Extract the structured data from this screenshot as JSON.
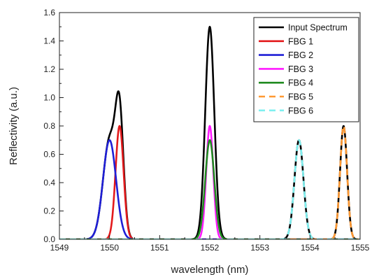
{
  "chart_data": {
    "type": "line",
    "xlabel": "wavelength (nm)",
    "ylabel": "Reflectivity (a.u.)",
    "xlim": [
      1549,
      1555
    ],
    "ylim": [
      0.0,
      1.6
    ],
    "x_ticks": [
      1549,
      1550,
      1551,
      1552,
      1553,
      1554,
      1555
    ],
    "y_ticks": [
      "0.0",
      "0.2",
      "0.4",
      "0.6",
      "0.8",
      "1.0",
      "1.2",
      "1.4",
      "1.6"
    ],
    "grid": false,
    "legend_position": "top-right",
    "series": [
      {
        "name": "Input Spectrum",
        "color": "#000000",
        "style": "solid",
        "peaks": [
          {
            "center": 1550.0,
            "height": 0.7,
            "width": 0.13
          },
          {
            "center": 1550.2,
            "height": 0.8,
            "width": 0.08
          },
          {
            "center": 1552.0,
            "height": 1.5,
            "width": 0.09
          },
          {
            "center": 1553.78,
            "height": 0.7,
            "width": 0.09
          },
          {
            "center": 1554.67,
            "height": 0.8,
            "width": 0.07
          }
        ]
      },
      {
        "name": "FBG 1",
        "color": "#e31a1c",
        "style": "solid",
        "peaks": [
          {
            "center": 1550.2,
            "height": 0.8,
            "width": 0.08
          }
        ]
      },
      {
        "name": "FBG 2",
        "color": "#1f1fd6",
        "style": "solid",
        "peaks": [
          {
            "center": 1550.0,
            "height": 0.7,
            "width": 0.13
          }
        ]
      },
      {
        "name": "FBG 3",
        "color": "#ff1aff",
        "style": "solid",
        "peaks": [
          {
            "center": 1552.0,
            "height": 0.8,
            "width": 0.07
          }
        ]
      },
      {
        "name": "FBG 4",
        "color": "#1f8a1f",
        "style": "solid",
        "peaks": [
          {
            "center": 1552.0,
            "height": 0.7,
            "width": 0.09
          }
        ]
      },
      {
        "name": "FBG 5",
        "color": "#ff9933",
        "style": "dashed",
        "peaks": [
          {
            "center": 1554.67,
            "height": 0.8,
            "width": 0.07
          }
        ]
      },
      {
        "name": "FBG 6",
        "color": "#7ff0f0",
        "style": "dashed",
        "peaks": [
          {
            "center": 1553.78,
            "height": 0.7,
            "width": 0.09
          }
        ]
      }
    ]
  }
}
